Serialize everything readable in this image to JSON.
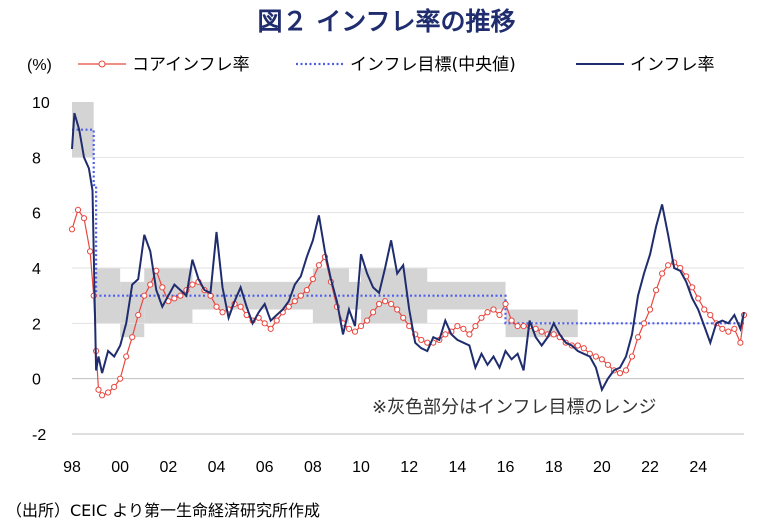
{
  "chart_data": {
    "type": "line",
    "title": "図２ インフレ率の推移",
    "ylabel": "(%)",
    "ylim": [
      -2,
      10
    ],
    "yticks": [
      10,
      8,
      6,
      4,
      2,
      0,
      -2
    ],
    "xlim": [
      1998,
      2025.9
    ],
    "xticks": [
      1998,
      2000,
      2002,
      2004,
      2006,
      2008,
      2010,
      2012,
      2014,
      2016,
      2018,
      2020,
      2022,
      2024
    ],
    "xticklabels": [
      "98",
      "00",
      "02",
      "04",
      "06",
      "08",
      "10",
      "12",
      "14",
      "16",
      "18",
      "20",
      "22",
      "24"
    ],
    "grid": "horizontal",
    "legend_position": "top",
    "note": "※灰色部分はインフレ目標のレンジ",
    "source": "（出所）CEIC より第一生命経済研究所作成",
    "series": [
      {
        "name": "コアインフレ率",
        "style": "line-circle-markers",
        "color": "#e8473f",
        "x": [
          1998.0,
          1998.25,
          1998.5,
          1998.75,
          1998.9,
          1999.0,
          1999.1,
          1999.25,
          1999.5,
          1999.75,
          2000.0,
          2000.25,
          2000.5,
          2000.75,
          2001.0,
          2001.25,
          2001.5,
          2001.75,
          2002.0,
          2002.25,
          2002.5,
          2002.75,
          2003.0,
          2003.25,
          2003.5,
          2003.75,
          2004.0,
          2004.25,
          2004.5,
          2004.75,
          2005.0,
          2005.25,
          2005.5,
          2005.75,
          2006.0,
          2006.25,
          2006.5,
          2006.75,
          2007.0,
          2007.25,
          2007.5,
          2007.75,
          2008.0,
          2008.25,
          2008.5,
          2008.75,
          2009.0,
          2009.25,
          2009.5,
          2009.75,
          2010.0,
          2010.25,
          2010.5,
          2010.75,
          2011.0,
          2011.25,
          2011.5,
          2011.75,
          2012.0,
          2012.25,
          2012.5,
          2012.75,
          2013.0,
          2013.25,
          2013.5,
          2013.75,
          2014.0,
          2014.25,
          2014.5,
          2014.75,
          2015.0,
          2015.25,
          2015.5,
          2015.75,
          2016.0,
          2016.25,
          2016.5,
          2016.75,
          2017.0,
          2017.25,
          2017.5,
          2017.75,
          2018.0,
          2018.25,
          2018.5,
          2018.75,
          2019.0,
          2019.25,
          2019.5,
          2019.75,
          2020.0,
          2020.25,
          2020.5,
          2020.75,
          2021.0,
          2021.25,
          2021.5,
          2021.75,
          2022.0,
          2022.25,
          2022.5,
          2022.75,
          2023.0,
          2023.25,
          2023.5,
          2023.75,
          2024.0,
          2024.25,
          2024.5,
          2024.75,
          2025.0,
          2025.25,
          2025.5,
          2025.75,
          2025.9
        ],
        "values": [
          5.4,
          6.1,
          5.8,
          4.6,
          3.0,
          1.0,
          -0.4,
          -0.6,
          -0.5,
          -0.3,
          0.0,
          0.8,
          1.5,
          2.3,
          3.0,
          3.4,
          3.9,
          3.3,
          2.8,
          2.9,
          3.0,
          3.2,
          3.4,
          3.5,
          3.2,
          3.0,
          2.6,
          2.4,
          2.5,
          2.7,
          2.6,
          2.3,
          2.1,
          2.2,
          2.0,
          1.8,
          2.1,
          2.4,
          2.6,
          2.8,
          3.0,
          3.2,
          3.6,
          4.1,
          4.4,
          3.5,
          2.6,
          2.0,
          1.8,
          1.7,
          1.9,
          2.1,
          2.4,
          2.7,
          2.8,
          2.7,
          2.5,
          2.2,
          1.9,
          1.6,
          1.4,
          1.3,
          1.3,
          1.4,
          1.6,
          1.7,
          1.9,
          1.8,
          1.6,
          1.9,
          2.2,
          2.4,
          2.5,
          2.3,
          2.7,
          2.1,
          1.9,
          1.9,
          1.9,
          1.8,
          1.7,
          1.6,
          1.6,
          1.5,
          1.3,
          1.2,
          1.2,
          1.1,
          0.9,
          0.8,
          0.7,
          0.5,
          0.3,
          0.2,
          0.3,
          0.8,
          1.5,
          2.0,
          2.5,
          3.2,
          3.8,
          4.1,
          4.2,
          4.0,
          3.7,
          3.3,
          2.9,
          2.5,
          2.3,
          2.0,
          1.8,
          1.7,
          1.8,
          1.3,
          2.3
        ]
      },
      {
        "name": "インフレ目標(中央値)",
        "style": "dotted-step",
        "color": "#4f5fe8",
        "x": [
          1998.0,
          1998.9,
          1998.9,
          1999.0,
          1999.0,
          2000.0,
          2000.0,
          2016.0,
          2016.0,
          2025.9
        ],
        "values": [
          9.0,
          9.0,
          7.0,
          7.0,
          3.0,
          3.0,
          3.0,
          3.0,
          2.0,
          2.0
        ]
      },
      {
        "name": "インフレ率",
        "style": "line",
        "color": "#1f2d6e",
        "x": [
          1998.0,
          1998.1,
          1998.3,
          1998.5,
          1998.7,
          1998.85,
          1999.0,
          1999.1,
          1999.25,
          1999.5,
          1999.75,
          2000.0,
          2000.25,
          2000.5,
          2000.75,
          2001.0,
          2001.25,
          2001.5,
          2001.75,
          2002.0,
          2002.25,
          2002.5,
          2002.75,
          2003.0,
          2003.25,
          2003.5,
          2003.75,
          2004.0,
          2004.25,
          2004.5,
          2004.75,
          2005.0,
          2005.25,
          2005.5,
          2005.75,
          2006.0,
          2006.25,
          2006.5,
          2006.75,
          2007.0,
          2007.25,
          2007.5,
          2007.75,
          2008.0,
          2008.25,
          2008.5,
          2008.75,
          2009.0,
          2009.25,
          2009.5,
          2009.75,
          2010.0,
          2010.25,
          2010.5,
          2010.75,
          2011.0,
          2011.25,
          2011.5,
          2011.75,
          2012.0,
          2012.25,
          2012.5,
          2012.75,
          2013.0,
          2013.25,
          2013.5,
          2013.75,
          2014.0,
          2014.25,
          2014.5,
          2014.75,
          2015.0,
          2015.25,
          2015.5,
          2015.75,
          2016.0,
          2016.25,
          2016.5,
          2016.75,
          2017.0,
          2017.25,
          2017.5,
          2017.75,
          2018.0,
          2018.25,
          2018.5,
          2018.75,
          2019.0,
          2019.25,
          2019.5,
          2019.75,
          2020.0,
          2020.25,
          2020.5,
          2020.75,
          2021.0,
          2021.25,
          2021.5,
          2021.75,
          2022.0,
          2022.25,
          2022.5,
          2022.75,
          2023.0,
          2023.25,
          2023.5,
          2023.75,
          2024.0,
          2024.25,
          2024.5,
          2024.75,
          2025.0,
          2025.25,
          2025.5,
          2025.75,
          2025.9
        ],
        "values": [
          8.3,
          9.6,
          9.0,
          8.0,
          7.6,
          6.8,
          0.3,
          0.8,
          0.2,
          1.0,
          0.8,
          1.2,
          2.0,
          3.4,
          3.6,
          5.2,
          4.6,
          3.2,
          2.6,
          3.0,
          3.4,
          3.2,
          3.0,
          4.3,
          3.6,
          3.2,
          3.1,
          5.3,
          3.3,
          2.2,
          2.8,
          3.3,
          2.6,
          2.0,
          2.4,
          2.7,
          2.1,
          2.3,
          2.5,
          2.8,
          3.4,
          3.7,
          4.4,
          5.0,
          5.9,
          4.6,
          3.6,
          2.8,
          1.6,
          2.5,
          1.9,
          4.5,
          3.8,
          3.3,
          3.1,
          4.0,
          5.0,
          3.8,
          4.1,
          2.5,
          1.3,
          1.1,
          1.0,
          1.5,
          1.4,
          2.1,
          1.6,
          1.4,
          1.3,
          1.2,
          0.4,
          0.9,
          0.5,
          0.8,
          0.4,
          1.0,
          0.7,
          0.9,
          0.3,
          2.1,
          1.5,
          1.2,
          1.5,
          2.0,
          1.6,
          1.3,
          1.2,
          1.0,
          0.9,
          0.8,
          0.4,
          -0.4,
          0.0,
          0.3,
          0.4,
          0.8,
          1.6,
          3.0,
          3.8,
          4.5,
          5.5,
          6.3,
          5.2,
          4.0,
          3.9,
          3.5,
          2.9,
          2.5,
          1.9,
          1.3,
          2.0,
          2.1,
          2.0,
          2.3,
          1.8,
          2.4
        ]
      }
    ],
    "target_range_bands": [
      {
        "x": [
          1998.0,
          1998.9
        ],
        "low": 8.0,
        "high": 10.0
      },
      {
        "x": [
          1999.0,
          2000.0
        ],
        "low": 2.0,
        "high": 4.0
      },
      {
        "x": [
          2000.0,
          2001.0
        ],
        "low": 1.5,
        "high": 3.5
      },
      {
        "x": [
          2001.0,
          2016.0
        ],
        "low": 2.5,
        "high": 3.5
      },
      {
        "x": [
          2001.0,
          2003.0
        ],
        "low": 2.0,
        "high": 4.0
      },
      {
        "x": [
          2008.0,
          2009.5
        ],
        "low": 2.0,
        "high": 4.0
      },
      {
        "x": [
          2010.0,
          2012.75
        ],
        "low": 2.0,
        "high": 4.0
      },
      {
        "x": [
          2016.0,
          2019.0
        ],
        "low": 1.5,
        "high": 2.5
      }
    ]
  }
}
